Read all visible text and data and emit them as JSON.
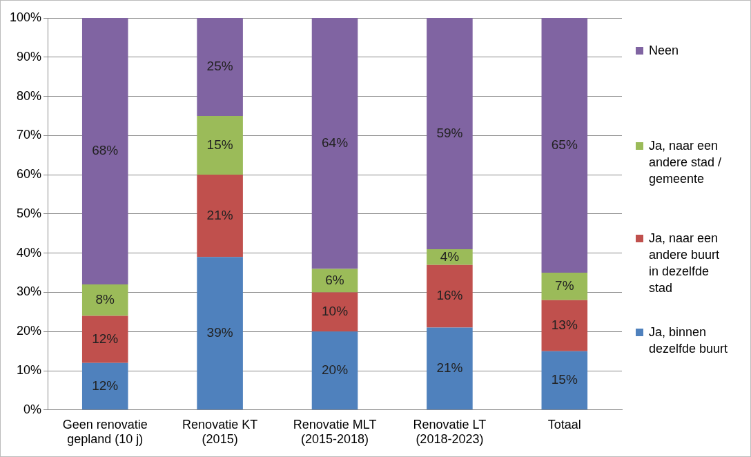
{
  "chart_data": {
    "type": "bar",
    "stacked": true,
    "categories": [
      "Geen renovatie gepland (10 j)",
      "Renovatie KT (2015)",
      "Renovatie MLT (2015-2018)",
      "Renovatie LT (2018-2023)",
      "Totaal"
    ],
    "series": [
      {
        "name": "Ja, binnen dezelfde buurt",
        "color": "#4f81bd",
        "values": [
          12,
          39,
          20,
          21,
          15
        ],
        "value_labels": [
          "12%",
          "39%",
          "20%",
          "21%",
          "15%"
        ]
      },
      {
        "name": "Ja, naar een andere buurt in dezelfde stad",
        "color": "#c0504d",
        "values": [
          12,
          21,
          10,
          16,
          13
        ],
        "value_labels": [
          "12%",
          "21%",
          "10%",
          "16%",
          "13%"
        ]
      },
      {
        "name": "Ja, naar een andere stad / gemeente",
        "color": "#9bbb59",
        "values": [
          8,
          15,
          6,
          4,
          7
        ],
        "value_labels": [
          "8%",
          "15%",
          "6%",
          "4%",
          "7%"
        ]
      },
      {
        "name": "Neen",
        "color": "#8064a2",
        "values": [
          68,
          25,
          64,
          59,
          65
        ],
        "value_labels": [
          "68%",
          "25%",
          "64%",
          "59%",
          "65%"
        ]
      }
    ],
    "ylim": [
      0,
      100
    ],
    "yticks": [
      {
        "value": 0,
        "label": "0%"
      },
      {
        "value": 10,
        "label": "10%"
      },
      {
        "value": 20,
        "label": "20%"
      },
      {
        "value": 30,
        "label": "30%"
      },
      {
        "value": 40,
        "label": "40%"
      },
      {
        "value": 50,
        "label": "50%"
      },
      {
        "value": 60,
        "label": "60%"
      },
      {
        "value": 70,
        "label": "70%"
      },
      {
        "value": 80,
        "label": "80%"
      },
      {
        "value": 90,
        "label": "90%"
      },
      {
        "value": 100,
        "label": "100%"
      }
    ],
    "grid": "y",
    "legend": "right"
  }
}
